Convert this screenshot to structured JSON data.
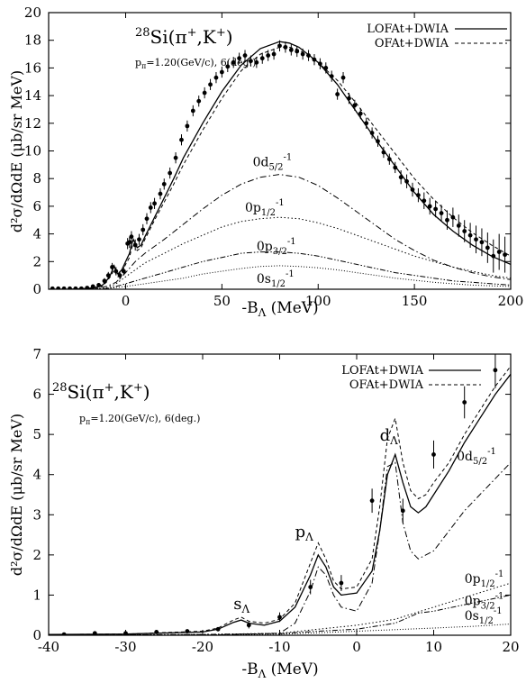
{
  "chart_data": [
    {
      "type": "line",
      "title": "",
      "xlabel_main": "-B",
      "xlabel_sub": "Λ",
      "xlabel_unit": " (MeV)",
      "ylabel": "d²σ/dΩdE (μb/sr MeV)",
      "xlim": [
        -40,
        200
      ],
      "ylim": [
        0,
        20
      ],
      "xticks": [
        0,
        50,
        100,
        150,
        200
      ],
      "yticks": [
        0,
        2,
        4,
        6,
        8,
        10,
        12,
        14,
        16,
        18,
        20
      ],
      "annotations": {
        "reaction_mass": "28",
        "reaction": "Si(π",
        "reaction_sup1": "+",
        "reaction_mid": ",K",
        "reaction_sup2": "+",
        "reaction_end": ")",
        "kinematics_p": "p",
        "kinematics_sub": "π",
        "kinematics_rest": "=1.20(GeV/c),  6(deg.)"
      },
      "legend_position": "top-right",
      "series": [
        {
          "name": "LOFAt+DWIA",
          "style": "solid",
          "x": [
            -40,
            -30,
            -20,
            -15,
            -12,
            -10,
            -8,
            -6,
            -5,
            -4,
            -2,
            0,
            2,
            3,
            4,
            6,
            8,
            10,
            15,
            20,
            25,
            30,
            40,
            50,
            60,
            70,
            80,
            85,
            90,
            100,
            110,
            120,
            130,
            140,
            150,
            160,
            170,
            180,
            190,
            200
          ],
          "y": [
            0,
            0,
            0.05,
            0.15,
            0.3,
            0.6,
            1.0,
            1.7,
            1.3,
            1.1,
            1.4,
            2.0,
            2.6,
            3.2,
            3.6,
            3.0,
            3.2,
            3.8,
            5.2,
            6.6,
            8.0,
            9.5,
            12.0,
            14.3,
            16.2,
            17.4,
            17.9,
            17.8,
            17.5,
            16.4,
            14.8,
            12.8,
            10.8,
            8.9,
            7.0,
            5.4,
            4.2,
            3.2,
            2.4,
            1.8
          ]
        },
        {
          "name": "OFAt+DWIA",
          "style": "dashed",
          "x": [
            -40,
            -30,
            -20,
            -15,
            -12,
            -10,
            -8,
            -6,
            -5,
            -4,
            -2,
            0,
            2,
            3,
            4,
            6,
            8,
            10,
            15,
            20,
            25,
            30,
            40,
            50,
            60,
            70,
            80,
            85,
            90,
            100,
            110,
            120,
            130,
            140,
            150,
            160,
            170,
            180,
            190,
            200
          ],
          "y": [
            0,
            0,
            0.05,
            0.12,
            0.25,
            0.5,
            0.9,
            1.4,
            1.1,
            0.9,
            1.2,
            1.8,
            2.3,
            2.9,
            3.3,
            2.8,
            3.0,
            3.6,
            5.0,
            6.3,
            7.6,
            9.0,
            11.5,
            13.8,
            15.8,
            17.0,
            17.5,
            17.5,
            17.3,
            16.4,
            15.1,
            13.4,
            11.6,
            9.8,
            8.0,
            6.5,
            5.2,
            4.1,
            3.2,
            2.4
          ]
        },
        {
          "name": "0d5/2-1",
          "style": "dashdot",
          "x": [
            -40,
            -20,
            -10,
            -5,
            0,
            5,
            10,
            20,
            30,
            40,
            50,
            60,
            70,
            80,
            90,
            100,
            110,
            120,
            130,
            140,
            150,
            160,
            170,
            180,
            190,
            200
          ],
          "y": [
            0,
            0,
            0.2,
            0.5,
            1.2,
            2.0,
            2.6,
            3.6,
            4.7,
            5.8,
            6.8,
            7.6,
            8.1,
            8.3,
            8.1,
            7.5,
            6.6,
            5.6,
            4.6,
            3.6,
            2.8,
            2.1,
            1.6,
            1.2,
            0.9,
            0.7
          ]
        },
        {
          "name": "0p1/2-1",
          "style": "dotted",
          "x": [
            -40,
            -20,
            -10,
            -5,
            0,
            5,
            10,
            20,
            30,
            40,
            50,
            60,
            70,
            80,
            90,
            100,
            110,
            120,
            130,
            140,
            150,
            160,
            170,
            180,
            190,
            200
          ],
          "y": [
            0,
            0,
            0.1,
            0.4,
            0.9,
            1.4,
            1.9,
            2.6,
            3.3,
            3.9,
            4.5,
            4.9,
            5.1,
            5.2,
            5.1,
            4.8,
            4.4,
            3.9,
            3.4,
            2.9,
            2.4,
            2.0,
            1.6,
            1.3,
            1.0,
            0.8
          ]
        },
        {
          "name": "0p3/2-1",
          "style": "dashdotdot",
          "x": [
            -40,
            -20,
            -10,
            -5,
            0,
            5,
            10,
            20,
            30,
            40,
            50,
            60,
            70,
            80,
            90,
            100,
            110,
            120,
            130,
            140,
            150,
            160,
            170,
            180,
            190,
            200
          ],
          "y": [
            0,
            0,
            0.05,
            0.2,
            0.4,
            0.6,
            0.8,
            1.2,
            1.6,
            2.0,
            2.3,
            2.6,
            2.7,
            2.7,
            2.6,
            2.4,
            2.1,
            1.8,
            1.5,
            1.2,
            1.0,
            0.8,
            0.6,
            0.5,
            0.4,
            0.3
          ]
        },
        {
          "name": "0s1/2-1",
          "style": "finedotted",
          "x": [
            -40,
            -20,
            -10,
            0,
            10,
            20,
            30,
            40,
            50,
            60,
            70,
            80,
            90,
            100,
            110,
            120,
            130,
            140,
            150,
            160,
            170,
            180,
            190,
            200
          ],
          "y": [
            0,
            0,
            0.05,
            0.2,
            0.4,
            0.6,
            0.8,
            1.1,
            1.3,
            1.5,
            1.65,
            1.7,
            1.65,
            1.55,
            1.4,
            1.2,
            1.0,
            0.8,
            0.65,
            0.5,
            0.4,
            0.3,
            0.25,
            0.2
          ]
        }
      ],
      "curve_labels": [
        {
          "base": "0d",
          "sub": "5/2",
          "sup": "-1",
          "x": 66,
          "y": 8.9
        },
        {
          "base": "0p",
          "sub": "1/2",
          "sup": "-1",
          "x": 62,
          "y": 5.6
        },
        {
          "base": "0p",
          "sub": "3/2",
          "sup": "-1",
          "x": 68,
          "y": 2.8
        },
        {
          "base": "0s",
          "sub": "1/2",
          "sup": "-1",
          "x": 68,
          "y": 0.45
        }
      ],
      "measured": {
        "x": [
          -38,
          -35,
          -32,
          -29,
          -26,
          -23,
          -20,
          -17,
          -14,
          -11,
          -9,
          -7,
          -5,
          -3,
          -1,
          1,
          2,
          3,
          5,
          7,
          9,
          11,
          13,
          15,
          18,
          20,
          23,
          26,
          29,
          32,
          35,
          38,
          41,
          44,
          47,
          50,
          53,
          56,
          59,
          62,
          65,
          68,
          71,
          74,
          77,
          80,
          83,
          86,
          89,
          92,
          95,
          98,
          101,
          104,
          107,
          110,
          113,
          116,
          119,
          122,
          125,
          128,
          131,
          134,
          137,
          140,
          143,
          146,
          149,
          152,
          155,
          158,
          161,
          164,
          167,
          170,
          173,
          176,
          179,
          182,
          185,
          188,
          191,
          194,
          197
        ],
        "y": [
          0.05,
          0.05,
          0.05,
          0.05,
          0.05,
          0.05,
          0.1,
          0.2,
          0.3,
          0.6,
          1.0,
          1.6,
          1.3,
          1.0,
          1.3,
          3.3,
          3.4,
          3.8,
          3.2,
          3.6,
          4.3,
          5.1,
          5.9,
          6.2,
          6.9,
          7.6,
          8.4,
          9.5,
          10.8,
          11.8,
          12.9,
          13.6,
          14.2,
          14.8,
          15.3,
          15.7,
          16.1,
          16.4,
          16.7,
          16.9,
          16.5,
          16.4,
          16.7,
          16.9,
          17.0,
          17.6,
          17.5,
          17.3,
          17.2,
          17.0,
          16.9,
          16.6,
          16.3,
          16.0,
          15.4,
          14.1,
          15.3,
          13.8,
          13.3,
          12.7,
          12.0,
          11.3,
          10.7,
          9.9,
          9.4,
          8.8,
          8.1,
          7.8,
          7.2,
          6.8,
          6.4,
          6.0,
          5.8,
          5.5,
          5.0,
          5.2,
          4.6,
          4.2,
          3.9,
          3.6,
          3.4,
          3.0,
          2.4,
          2.7,
          2.5
        ],
        "err": [
          0.05,
          0.05,
          0.05,
          0.05,
          0.05,
          0.05,
          0.05,
          0.1,
          0.15,
          0.2,
          0.25,
          0.3,
          0.3,
          0.3,
          0.3,
          0.4,
          0.4,
          0.4,
          0.4,
          0.4,
          0.4,
          0.4,
          0.4,
          0.4,
          0.4,
          0.4,
          0.4,
          0.4,
          0.4,
          0.4,
          0.4,
          0.4,
          0.4,
          0.4,
          0.4,
          0.4,
          0.4,
          0.4,
          0.4,
          0.4,
          0.4,
          0.4,
          0.4,
          0.4,
          0.4,
          0.4,
          0.4,
          0.4,
          0.4,
          0.4,
          0.4,
          0.4,
          0.4,
          0.4,
          0.4,
          0.4,
          0.4,
          0.4,
          0.4,
          0.4,
          0.4,
          0.4,
          0.4,
          0.4,
          0.4,
          0.4,
          0.5,
          0.5,
          0.5,
          0.5,
          0.6,
          0.6,
          0.6,
          0.6,
          0.7,
          0.7,
          0.8,
          0.8,
          0.9,
          1.0,
          1.0,
          1.1,
          1.2,
          1.3,
          1.3
        ]
      }
    },
    {
      "type": "line",
      "title": "",
      "xlabel_main": "-B",
      "xlabel_sub": "Λ",
      "xlabel_unit": " (MeV)",
      "ylabel": "d²σ/dΩdE (μb/sr MeV)",
      "xlim": [
        -40,
        20
      ],
      "ylim": [
        0,
        7
      ],
      "xticks": [
        -40,
        -30,
        -20,
        -10,
        0,
        10,
        20
      ],
      "yticks": [
        0,
        1,
        2,
        3,
        4,
        5,
        6,
        7
      ],
      "annotations": {
        "reaction_mass": "28",
        "reaction": "Si(π",
        "reaction_sup1": "+",
        "reaction_mid": ",K",
        "reaction_sup2": "+",
        "reaction_end": ")",
        "kinematics_p": "p",
        "kinematics_sub": "π",
        "kinematics_rest": "=1.20(GeV/c),  6(deg.)"
      },
      "legend_position": "top-right",
      "peak_labels": [
        {
          "base": "s",
          "sub": "Λ",
          "x": -16,
          "y": 0.65
        },
        {
          "base": "p",
          "sub": "Λ",
          "x": -8,
          "y": 2.45
        },
        {
          "base": "d",
          "sub": "Λ",
          "x": 3,
          "y": 4.85
        }
      ],
      "series": [
        {
          "name": "LOFAt+DWIA",
          "style": "solid",
          "x": [
            -40,
            -30,
            -20,
            -18,
            -16,
            -15,
            -14,
            -12,
            -10,
            -8,
            -6,
            -5,
            -4,
            -3,
            -2,
            0,
            2,
            3,
            4,
            5,
            6,
            7,
            8,
            9,
            10,
            12,
            14,
            16,
            18,
            20
          ],
          "y": [
            0.02,
            0.03,
            0.08,
            0.15,
            0.32,
            0.38,
            0.3,
            0.25,
            0.35,
            0.7,
            1.5,
            2.0,
            1.7,
            1.2,
            1.0,
            1.05,
            1.6,
            2.6,
            4.0,
            4.5,
            3.8,
            3.2,
            3.05,
            3.2,
            3.5,
            4.1,
            4.8,
            5.4,
            6.0,
            6.5
          ]
        },
        {
          "name": "OFAt+DWIA",
          "style": "dashed",
          "x": [
            -40,
            -30,
            -20,
            -18,
            -16,
            -15,
            -14,
            -12,
            -10,
            -8,
            -6,
            -5,
            -4,
            -3,
            -2,
            0,
            2,
            3,
            4,
            5,
            6,
            7,
            8,
            9,
            10,
            12,
            14,
            16,
            18,
            20
          ],
          "y": [
            0.02,
            0.03,
            0.1,
            0.18,
            0.38,
            0.45,
            0.35,
            0.3,
            0.4,
            0.8,
            1.8,
            2.3,
            1.9,
            1.35,
            1.15,
            1.2,
            1.9,
            3.2,
            4.9,
            5.4,
            4.3,
            3.6,
            3.4,
            3.5,
            3.8,
            4.3,
            5.0,
            5.6,
            6.2,
            6.7
          ]
        },
        {
          "name": "0d5/2-1",
          "style": "dashdot",
          "x": [
            -40,
            -20,
            -10,
            -8,
            -6,
            -5,
            -4,
            -3,
            -2,
            0,
            2,
            3,
            4,
            5,
            6,
            7,
            8,
            10,
            12,
            14,
            16,
            18,
            20
          ],
          "y": [
            0,
            0,
            0.05,
            0.3,
            1.1,
            1.7,
            1.5,
            1.0,
            0.7,
            0.6,
            1.3,
            2.6,
            4.2,
            4.3,
            2.8,
            2.1,
            1.9,
            2.1,
            2.6,
            3.1,
            3.5,
            3.9,
            4.3
          ]
        },
        {
          "name": "0p1/2-1",
          "style": "dotted",
          "x": [
            -40,
            -20,
            -10,
            -5,
            0,
            5,
            10,
            15,
            20
          ],
          "y": [
            0,
            0.02,
            0.05,
            0.15,
            0.25,
            0.4,
            0.7,
            1.0,
            1.3
          ]
        },
        {
          "name": "0p3/2-1",
          "style": "dashdotdot",
          "x": [
            -40,
            -20,
            -10,
            -5,
            0,
            5,
            8,
            10,
            15,
            20
          ],
          "y": [
            0,
            0.02,
            0.04,
            0.1,
            0.15,
            0.3,
            0.55,
            0.6,
            0.8,
            1.0
          ]
        },
        {
          "name": "0s1/2-1",
          "style": "finedotted",
          "x": [
            -40,
            -20,
            -10,
            -5,
            0,
            5,
            10,
            15,
            20
          ],
          "y": [
            0,
            0.01,
            0.03,
            0.06,
            0.1,
            0.14,
            0.18,
            0.22,
            0.28
          ]
        }
      ],
      "curve_labels": [
        {
          "base": "0d",
          "sub": "5/2",
          "sup": "-1",
          "x": 13,
          "y": 4.35
        },
        {
          "base": "0p",
          "sub": "1/2",
          "sup": "-1",
          "x": 14,
          "y": 1.3
        },
        {
          "base": "0p",
          "sub": "3/2",
          "sup": "-1",
          "x": 14,
          "y": 0.75
        },
        {
          "base": "0s",
          "sub": "1/2",
          "sup": "-1",
          "x": 14,
          "y": 0.38
        }
      ],
      "measured": {
        "x": [
          -38,
          -34,
          -30,
          -26,
          -22,
          -18,
          -14,
          -10,
          -6,
          -2,
          2,
          6,
          10,
          14,
          18
        ],
        "y": [
          0.02,
          0.05,
          0.05,
          0.08,
          0.1,
          0.15,
          0.25,
          0.45,
          1.2,
          1.3,
          3.35,
          3.1,
          4.5,
          5.8,
          6.6
        ],
        "err": [
          0.02,
          0.03,
          0.03,
          0.03,
          0.04,
          0.05,
          0.08,
          0.12,
          0.18,
          0.2,
          0.3,
          0.3,
          0.35,
          0.4,
          0.45
        ]
      }
    }
  ]
}
